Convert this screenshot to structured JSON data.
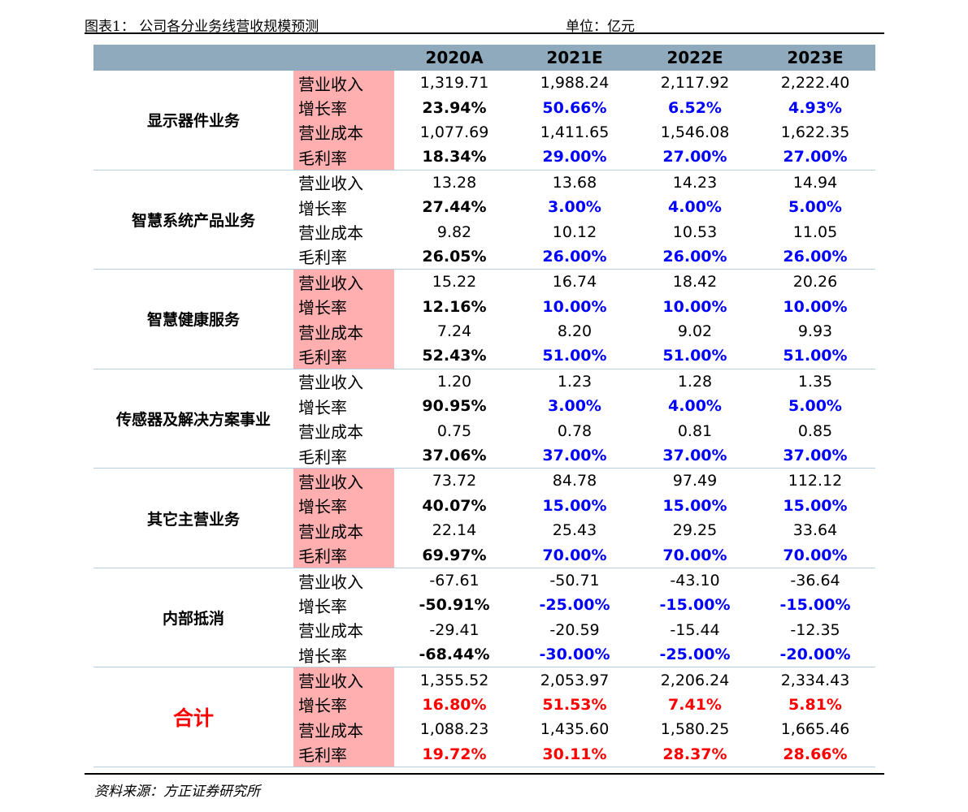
{
  "caption": {
    "title": "图表1：  公司各分业务线营收规模预测",
    "unit": "单位：亿元"
  },
  "columns": [
    "",
    "",
    "2020A",
    "2021E",
    "2022E",
    "2023E"
  ],
  "segments": [
    {
      "name": "显示器件业务",
      "pink": true,
      "rows": [
        {
          "metric": "营业收入",
          "values": [
            "1,319.71",
            "1,988.24",
            "2,117.92",
            "2,222.40"
          ]
        },
        {
          "metric": "增长率",
          "values": [
            "23.94%",
            "50.66%",
            "6.52%",
            "4.93%"
          ]
        },
        {
          "metric": "营业成本",
          "values": [
            "1,077.69",
            "1,411.65",
            "1,546.08",
            "1,622.35"
          ]
        },
        {
          "metric": "毛利率",
          "values": [
            "18.34%",
            "29.00%",
            "27.00%",
            "27.00%"
          ]
        }
      ]
    },
    {
      "name": "智慧系统产品业务",
      "pink": false,
      "rows": [
        {
          "metric": "营业收入",
          "values": [
            "13.28",
            "13.68",
            "14.23",
            "14.94"
          ]
        },
        {
          "metric": "增长率",
          "values": [
            "27.44%",
            "3.00%",
            "4.00%",
            "5.00%"
          ]
        },
        {
          "metric": "营业成本",
          "values": [
            "9.82",
            "10.12",
            "10.53",
            "11.05"
          ]
        },
        {
          "metric": "毛利率",
          "values": [
            "26.05%",
            "26.00%",
            "26.00%",
            "26.00%"
          ]
        }
      ]
    },
    {
      "name": "智慧健康服务",
      "pink": true,
      "rows": [
        {
          "metric": "营业收入",
          "values": [
            "15.22",
            "16.74",
            "18.42",
            "20.26"
          ]
        },
        {
          "metric": "增长率",
          "values": [
            "12.16%",
            "10.00%",
            "10.00%",
            "10.00%"
          ]
        },
        {
          "metric": "营业成本",
          "values": [
            "7.24",
            "8.20",
            "9.02",
            "9.93"
          ]
        },
        {
          "metric": "毛利率",
          "values": [
            "52.43%",
            "51.00%",
            "51.00%",
            "51.00%"
          ]
        }
      ]
    },
    {
      "name": "传感器及解决方案事业",
      "pink": false,
      "rows": [
        {
          "metric": "营业收入",
          "values": [
            "1.20",
            "1.23",
            "1.28",
            "1.35"
          ]
        },
        {
          "metric": "增长率",
          "values": [
            "90.95%",
            "3.00%",
            "4.00%",
            "5.00%"
          ]
        },
        {
          "metric": "营业成本",
          "values": [
            "0.75",
            "0.78",
            "0.81",
            "0.85"
          ]
        },
        {
          "metric": "毛利率",
          "values": [
            "37.06%",
            "37.00%",
            "37.00%",
            "37.00%"
          ]
        }
      ]
    },
    {
      "name": "其它主营业务",
      "pink": true,
      "rows": [
        {
          "metric": "营业收入",
          "values": [
            "73.72",
            "84.78",
            "97.49",
            "112.12"
          ]
        },
        {
          "metric": "增长率",
          "values": [
            "40.07%",
            "15.00%",
            "15.00%",
            "15.00%"
          ]
        },
        {
          "metric": "营业成本",
          "values": [
            "22.14",
            "25.43",
            "29.25",
            "33.64"
          ]
        },
        {
          "metric": "毛利率",
          "values": [
            "69.97%",
            "70.00%",
            "70.00%",
            "70.00%"
          ]
        }
      ]
    },
    {
      "name": "内部抵消",
      "pink": false,
      "rows": [
        {
          "metric": "营业收入",
          "values": [
            "-67.61",
            "-50.71",
            "-43.10",
            "-36.64"
          ]
        },
        {
          "metric": "增长率",
          "values": [
            "-50.91%",
            "-25.00%",
            "-15.00%",
            "-15.00%"
          ]
        },
        {
          "metric": "营业成本",
          "values": [
            "-29.41",
            "-20.59",
            "-15.44",
            "-12.35"
          ]
        },
        {
          "metric": "增长率",
          "values": [
            "-68.44%",
            "-30.00%",
            "-25.00%",
            "-20.00%"
          ]
        }
      ]
    },
    {
      "name": "合计",
      "pink": true,
      "total": true,
      "rows": [
        {
          "metric": "营业收入",
          "values": [
            "1,355.52",
            "2,053.97",
            "2,206.24",
            "2,334.43"
          ]
        },
        {
          "metric": "增长率",
          "values": [
            "16.80%",
            "51.53%",
            "7.41%",
            "5.81%"
          ]
        },
        {
          "metric": "营业成本",
          "values": [
            "1,088.23",
            "1,435.60",
            "1,580.25",
            "1,665.46"
          ]
        },
        {
          "metric": "毛利率",
          "values": [
            "19.72%",
            "30.11%",
            "28.37%",
            "28.66%"
          ]
        }
      ]
    }
  ],
  "source": "资料来源：方正证券研究所",
  "colors": {
    "header_bg": "#8eaabc",
    "metric_pink": "#ffafb0",
    "forecast_blue": "#0000ff",
    "total_red": "#ff0000"
  }
}
